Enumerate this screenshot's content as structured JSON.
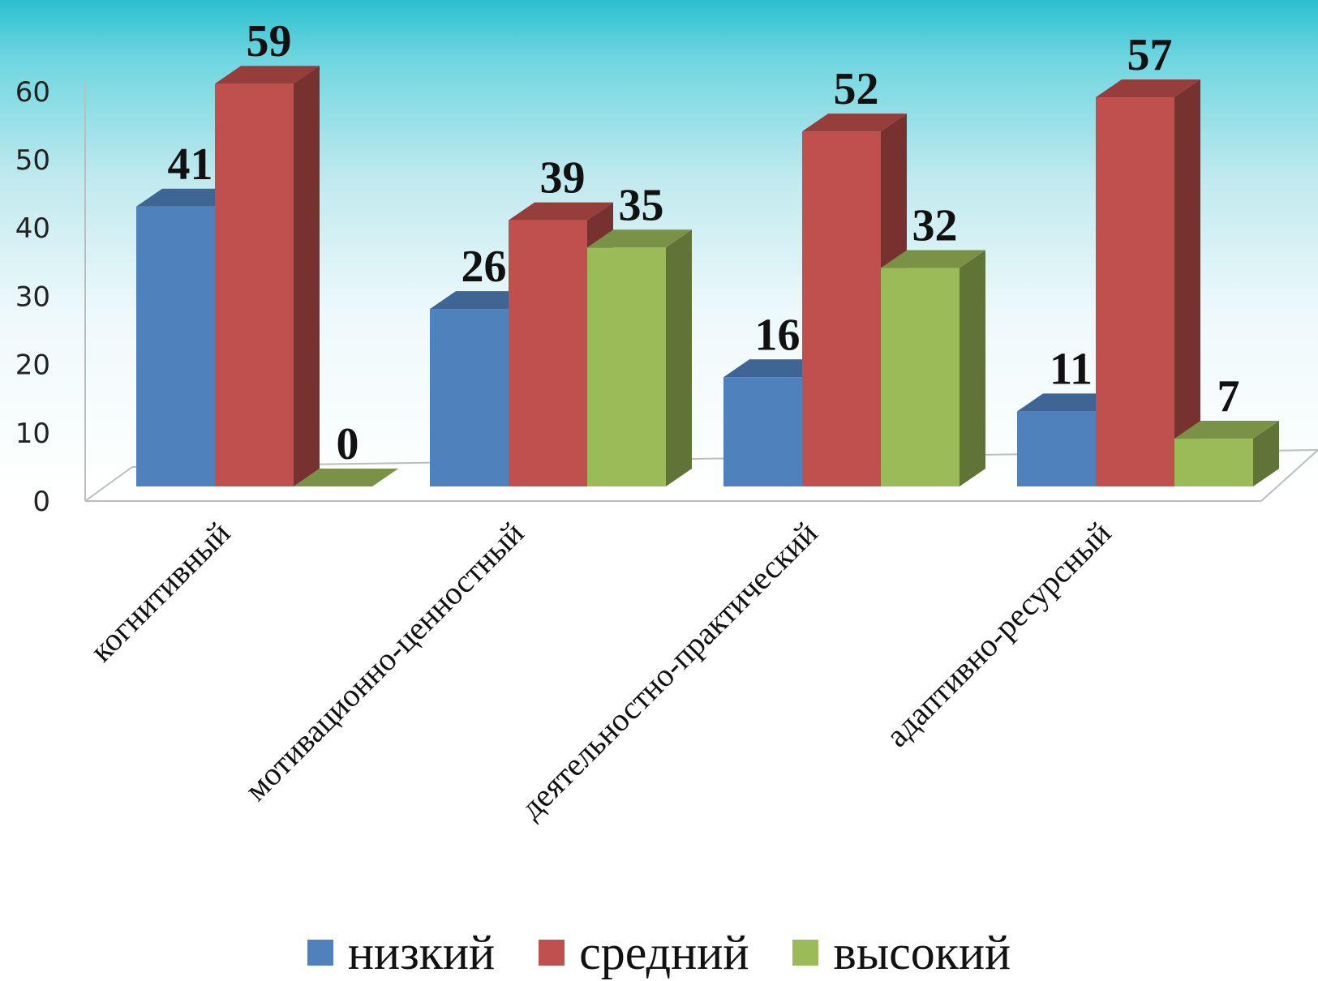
{
  "chart_data": {
    "type": "bar",
    "title": "",
    "xlabel": "",
    "ylabel": "",
    "ylim": [
      0,
      60
    ],
    "yticks": [
      0,
      10,
      20,
      30,
      40,
      50,
      60
    ],
    "categories": [
      "когнитивный",
      "мотивационно-ценностный",
      "деятельностно-практический",
      "адаптивно-ресурсный"
    ],
    "series": [
      {
        "name": "низкий",
        "values": [
          41,
          26,
          16,
          11
        ],
        "color": "#4F81BD"
      },
      {
        "name": "средний",
        "values": [
          59,
          39,
          52,
          57
        ],
        "color": "#C0504D"
      },
      {
        "name": "высокий",
        "values": [
          0,
          35,
          32,
          7
        ],
        "color": "#9BBB59"
      }
    ],
    "data_labels": true,
    "legend_position": "bottom",
    "grid": false,
    "style": "3d-clustered-column"
  }
}
